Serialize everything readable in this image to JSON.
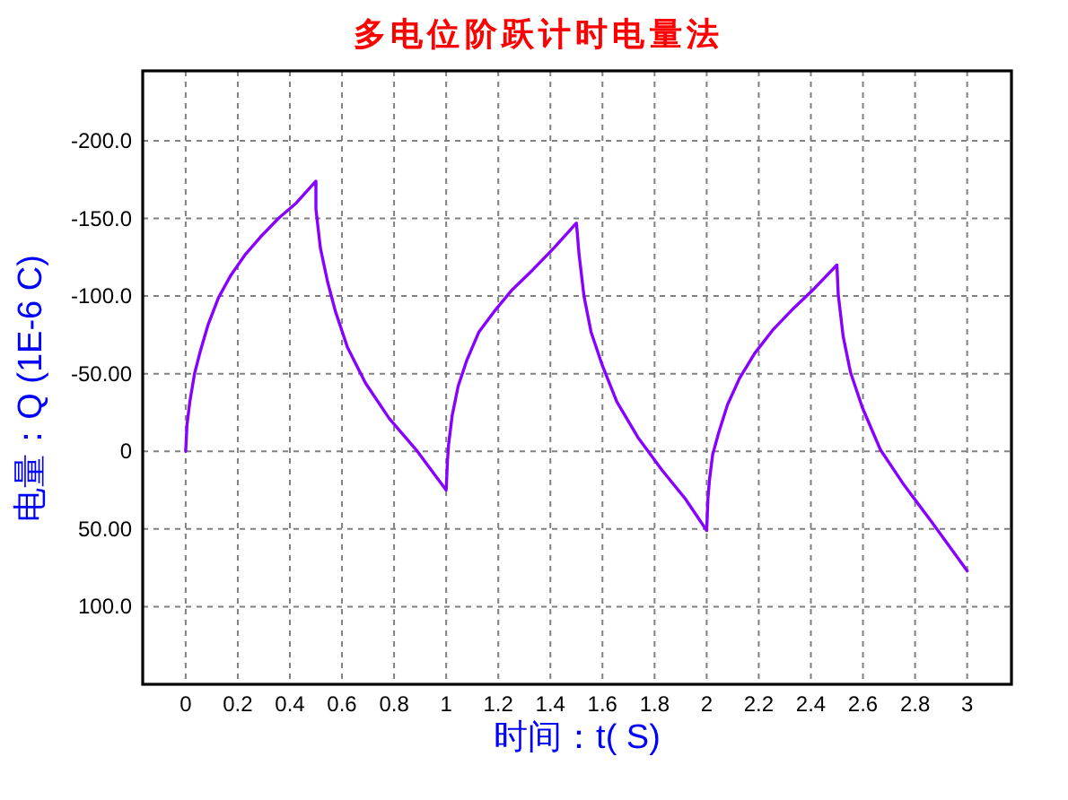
{
  "chart_data": {
    "type": "line",
    "title": "多电位阶跃计时电量法",
    "xlabel": "时间：t( S)",
    "ylabel": "电量：Q (1E-6 C)",
    "x": [
      0,
      0.005,
      0.016,
      0.034,
      0.057,
      0.085,
      0.126,
      0.172,
      0.23,
      0.287,
      0.356,
      0.425,
      0.5,
      0.5,
      0.517,
      0.545,
      0.575,
      0.621,
      0.69,
      0.782,
      0.885,
      1,
      1.005,
      1.009,
      1.023,
      1.046,
      1.08,
      1.126,
      1.184,
      1.253,
      1.333,
      1.414,
      1.5,
      1.51,
      1.529,
      1.556,
      1.598,
      1.655,
      1.736,
      1.828,
      1.92,
      2,
      2.005,
      2.011,
      2.023,
      2.046,
      2.08,
      2.126,
      2.184,
      2.253,
      2.333,
      2.414,
      2.5,
      2.505,
      2.524,
      2.552,
      2.598,
      2.667,
      2.759,
      2.862,
      3
    ],
    "series": [
      {
        "color": "#8800ff",
        "values": [
          0,
          -17,
          -32,
          -50,
          -65,
          -81,
          -99,
          -113,
          -127,
          -138,
          -150,
          -160,
          -174,
          -156,
          -131,
          -109,
          -90,
          -67,
          -44,
          -21,
          -1,
          25,
          6,
          -4,
          -23,
          -42,
          -59,
          -77,
          -90,
          -104,
          -117,
          -131,
          -147,
          -127,
          -100,
          -77,
          -56,
          -32,
          -9,
          12,
          31,
          51,
          30,
          18,
          2,
          -12,
          -30,
          -47,
          -63,
          -78,
          -92,
          -105,
          -120,
          -101,
          -74,
          -51,
          -28,
          -1,
          22,
          45,
          77
        ]
      }
    ],
    "xlim": [
      -0.165,
      3.17
    ],
    "ylim": [
      150,
      -245
    ],
    "xticks": [
      0,
      0.2,
      0.4,
      0.6,
      0.8,
      1,
      1.2,
      1.4,
      1.6,
      1.8,
      2,
      2.2,
      2.4,
      2.6,
      2.8,
      3
    ],
    "yticks": [
      {
        "value": -200,
        "label": "-200.0"
      },
      {
        "value": -150,
        "label": "-150.0"
      },
      {
        "value": -100,
        "label": "-100.0"
      },
      {
        "value": -50,
        "label": "-50.00"
      },
      0,
      {
        "value": 50,
        "label": "50.00"
      },
      {
        "value": 100,
        "label": "100.0"
      }
    ],
    "grid": true,
    "line_style": "solid"
  }
}
